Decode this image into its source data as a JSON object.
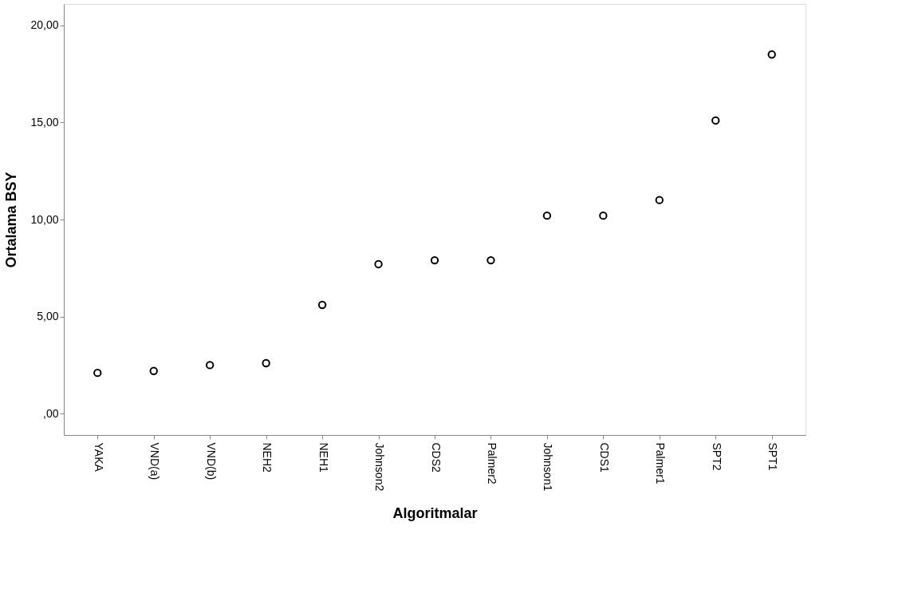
{
  "chart_data": {
    "type": "scatter",
    "xlabel": "Algoritmalar",
    "ylabel": "Ortalama BSY",
    "categories": [
      "YAKA",
      "VND(a)",
      "VND(b)",
      "NEH2",
      "NEH1",
      "Johnson2",
      "CDS2",
      "Palmer2",
      "Johnson1",
      "CDS1",
      "Palmer1",
      "SPT2",
      "SPT1"
    ],
    "series": [
      {
        "color": "#000000",
        "values": [
          2.1,
          2.2,
          2.5,
          2.6,
          5.6,
          7.7,
          7.9,
          7.9,
          10.2,
          10.2,
          11.0,
          15.1,
          18.5
        ]
      }
    ],
    "ylim": [
      -1.1,
      21.1
    ],
    "yticks": [
      {
        "value": 0,
        "label": ",00"
      },
      {
        "value": 5,
        "label": "5,00"
      },
      {
        "value": 10,
        "label": "10,00"
      },
      {
        "value": 15,
        "label": "15,00"
      },
      {
        "value": 20,
        "label": "20,00"
      }
    ],
    "marker": "circle",
    "grid": false,
    "legend": false
  }
}
